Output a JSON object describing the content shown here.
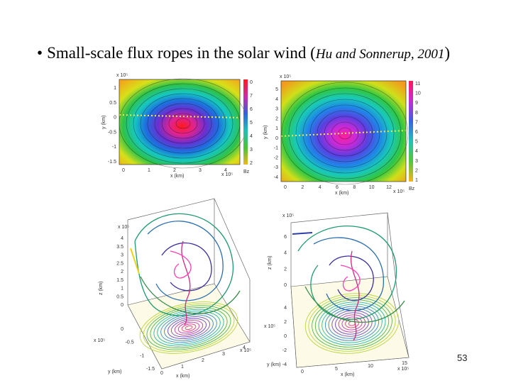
{
  "slide": {
    "bullet": "•",
    "title_text": "Small-scale flux ropes in the solar wind (",
    "citation": "Hu and Sonnerup, 2001",
    "close_paren": ")",
    "page_number": "53"
  },
  "panels": {
    "top_left": {
      "y_exponent": "x 10⁵",
      "x_exponent": "x 10⁵",
      "ylabel": "y (km)",
      "xlabel": "x (km)",
      "y_ticks": [
        "1",
        "0.5",
        "0",
        "-0.5",
        "-1",
        "-1.5"
      ],
      "x_ticks": [
        "0",
        "1",
        "2",
        "3",
        "4"
      ],
      "cbar_ticks": [
        "0",
        "7",
        "6",
        "5",
        "4",
        "3",
        "2"
      ],
      "cbar_label": "Bz"
    },
    "top_right": {
      "y_exponent": "x 10⁵",
      "x_exponent": "x 10⁵",
      "ylabel": "y (km)",
      "xlabel": "x (km)",
      "y_ticks": [
        "5",
        "4",
        "3",
        "2",
        "1",
        "0",
        "-1",
        "-2",
        "-3",
        "-4"
      ],
      "x_ticks": [
        "0",
        "2",
        "4",
        "6",
        "8",
        "10",
        "12"
      ],
      "cbar_ticks": [
        "11",
        "10",
        "9",
        "8",
        "7",
        "6",
        "5",
        "4",
        "3",
        "2",
        "1"
      ],
      "cbar_label": "Bz"
    },
    "bottom_left": {
      "z_exponent": "x 10⁵",
      "x_exponent": "x 10⁵",
      "y_exponent": "x 10⁵",
      "zlabel": "z (km)",
      "xlabel": "x (km)",
      "ylabel": "y (km)",
      "z_ticks": [
        "4",
        "3.5",
        "3",
        "2.5",
        "2",
        "1.5",
        "1",
        "0.5",
        "0"
      ],
      "y_ticks": [
        "0",
        "-0.5",
        "-1",
        "-1.5"
      ],
      "x_ticks": [
        "0",
        "1",
        "2",
        "3",
        "4"
      ]
    },
    "bottom_right": {
      "z_exponent": "x 10⁵",
      "x_exponent": "x 10⁵",
      "y_exponent": "x 10⁵",
      "zlabel": "z (km)",
      "xlabel": "x (km)",
      "ylabel": "y (km)",
      "z_ticks": [
        "6",
        "4",
        "2",
        "0"
      ],
      "y_ticks": [
        "4",
        "2",
        "0",
        "-2",
        "-4"
      ],
      "x_ticks": [
        "0",
        "5",
        "10",
        "15"
      ]
    }
  }
}
